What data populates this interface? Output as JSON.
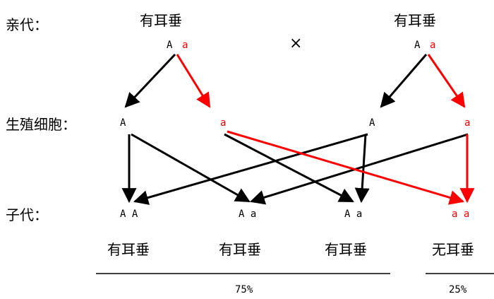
{
  "labels": {
    "parents": "亲代：",
    "gametes": "生殖细胞：",
    "offspring": "子代："
  },
  "parents": {
    "left_phenotype": "有耳垂",
    "left_genotype_dominant": "A",
    "left_genotype_recessive": "a",
    "cross_symbol": "×",
    "right_phenotype": "有耳垂",
    "right_genotype_dominant": "A",
    "right_genotype_recessive": "a"
  },
  "gametes": [
    "A",
    "a",
    "A",
    "a"
  ],
  "offspring": [
    {
      "genotype": "A A",
      "phenotype": "有耳垂"
    },
    {
      "genotype": "A a",
      "phenotype": "有耳垂"
    },
    {
      "genotype": "A a",
      "phenotype": "有耳垂"
    },
    {
      "genotype": "a a",
      "phenotype": "无耳垂"
    }
  ],
  "ratios": {
    "dominant": "75%",
    "recessive": "25%"
  },
  "colors": {
    "dominant_allele": "#000000",
    "recessive_allele": "#ff0000"
  }
}
